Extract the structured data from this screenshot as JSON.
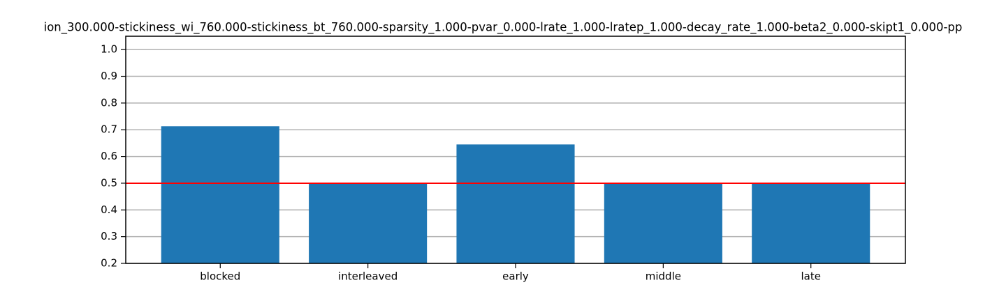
{
  "chart_data": {
    "type": "bar",
    "title": "ion_300.000-stickiness_wi_760.000-stickiness_bt_760.000-sparsity_1.000-pvar_0.000-lrate_1.000-lratep_1.000-decay_rate_1.000-beta2_0.000-skipt1_0.000-pp",
    "categories": [
      "blocked",
      "interleaved",
      "early",
      "middle",
      "late"
    ],
    "values": [
      0.713,
      0.502,
      0.645,
      0.502,
      0.502
    ],
    "color": "#1f77b4",
    "ylim": [
      0.2,
      1.05
    ],
    "yticks": [
      0.2,
      0.3,
      0.4,
      0.5,
      0.6,
      0.7,
      0.8,
      0.9,
      {
        "value": 1.0,
        "label": "1.0"
      }
    ],
    "grid": true,
    "hline": 0.5,
    "hline_color": "#ff0000"
  }
}
